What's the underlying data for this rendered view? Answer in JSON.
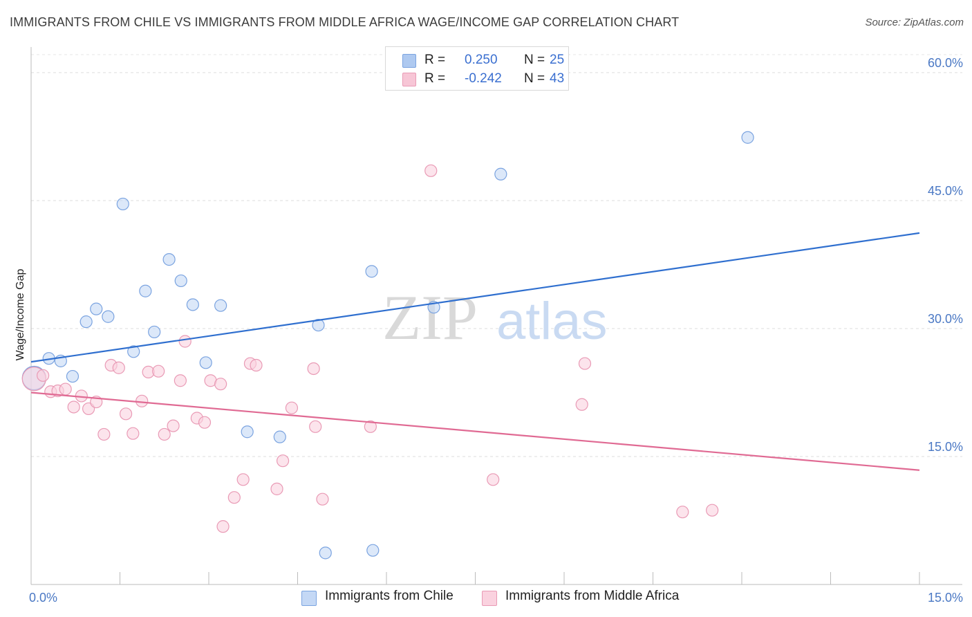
{
  "title": "IMMIGRANTS FROM CHILE VS IMMIGRANTS FROM MIDDLE AFRICA WAGE/INCOME GAP CORRELATION CHART",
  "source": "Source: ZipAtlas.com",
  "watermark": {
    "zip": "ZIP",
    "atlas": "atlas"
  },
  "legend_top": {
    "rows": [
      {
        "r_label": "R =",
        "r_value": "0.250",
        "n_label": "N =",
        "n_value": "25",
        "color": "#aec9f0",
        "border": "#7aa3e0"
      },
      {
        "r_label": "R =",
        "r_value": "-0.242",
        "n_label": "N =",
        "n_value": "43",
        "color": "#f7c6d6",
        "border": "#e99ab5"
      }
    ]
  },
  "legend_bottom": [
    {
      "label": "Immigrants from Chile",
      "color": "#c4d8f5",
      "border": "#7aa3e0"
    },
    {
      "label": "Immigrants from Middle Africa",
      "color": "#fad2df",
      "border": "#e99ab5"
    }
  ],
  "chart_data": {
    "type": "scatter",
    "title": "IMMIGRANTS FROM CHILE VS IMMIGRANTS FROM MIDDLE AFRICA WAGE/INCOME GAP CORRELATION CHART",
    "xlabel": "",
    "ylabel": "Wage/Income Gap",
    "xlim": [
      0,
      15
    ],
    "ylim": [
      0,
      63
    ],
    "x_tick_labels": [
      {
        "value": 0,
        "label": "0.0%"
      },
      {
        "value": 15,
        "label": "15.0%"
      }
    ],
    "y_tick_labels": [
      {
        "value": 15,
        "label": "15.0%"
      },
      {
        "value": 30,
        "label": "30.0%"
      },
      {
        "value": 45,
        "label": "45.0%"
      },
      {
        "value": 60,
        "label": "60.0%"
      }
    ],
    "grid": true,
    "series": [
      {
        "name": "Immigrants from Chile",
        "color": "#7aa3e0",
        "fill": "#c4d8f5",
        "line_color": "#2f6fcf",
        "trend": {
          "x": [
            0,
            15
          ],
          "y": [
            26.1,
            41.2
          ]
        },
        "points": [
          {
            "x": 0.05,
            "y": 24.2,
            "big": true
          },
          {
            "x": 0.3,
            "y": 26.5
          },
          {
            "x": 0.5,
            "y": 26.2
          },
          {
            "x": 0.7,
            "y": 24.4
          },
          {
            "x": 0.93,
            "y": 30.8
          },
          {
            "x": 1.1,
            "y": 32.3
          },
          {
            "x": 1.3,
            "y": 31.4
          },
          {
            "x": 1.55,
            "y": 44.6
          },
          {
            "x": 1.73,
            "y": 27.3
          },
          {
            "x": 1.93,
            "y": 34.4
          },
          {
            "x": 2.08,
            "y": 29.6
          },
          {
            "x": 2.33,
            "y": 38.1
          },
          {
            "x": 2.53,
            "y": 35.6
          },
          {
            "x": 2.73,
            "y": 32.8
          },
          {
            "x": 2.95,
            "y": 26.0
          },
          {
            "x": 3.2,
            "y": 32.7
          },
          {
            "x": 3.65,
            "y": 17.9
          },
          {
            "x": 4.2,
            "y": 17.3
          },
          {
            "x": 4.85,
            "y": 30.4
          },
          {
            "x": 4.97,
            "y": 3.7
          },
          {
            "x": 5.75,
            "y": 36.7
          },
          {
            "x": 5.77,
            "y": 4.0
          },
          {
            "x": 6.8,
            "y": 32.5
          },
          {
            "x": 7.93,
            "y": 48.1
          },
          {
            "x": 12.1,
            "y": 52.4
          }
        ]
      },
      {
        "name": "Immigrants from Middle Africa",
        "color": "#e99ab5",
        "fill": "#fad2df",
        "line_color": "#e06a93",
        "trend": {
          "x": [
            0,
            15
          ],
          "y": [
            22.5,
            13.4
          ]
        },
        "points": [
          {
            "x": 0.05,
            "y": 24.1,
            "big": true
          },
          {
            "x": 0.2,
            "y": 24.5
          },
          {
            "x": 0.33,
            "y": 22.6
          },
          {
            "x": 0.45,
            "y": 22.7
          },
          {
            "x": 0.58,
            "y": 22.9
          },
          {
            "x": 0.72,
            "y": 20.8
          },
          {
            "x": 0.85,
            "y": 22.1
          },
          {
            "x": 0.97,
            "y": 20.6
          },
          {
            "x": 1.1,
            "y": 21.4
          },
          {
            "x": 1.23,
            "y": 17.6
          },
          {
            "x": 1.35,
            "y": 25.7
          },
          {
            "x": 1.48,
            "y": 25.4
          },
          {
            "x": 1.6,
            "y": 20.0
          },
          {
            "x": 1.72,
            "y": 17.7
          },
          {
            "x": 1.87,
            "y": 21.5
          },
          {
            "x": 1.98,
            "y": 24.9
          },
          {
            "x": 2.15,
            "y": 25.0
          },
          {
            "x": 2.25,
            "y": 17.6
          },
          {
            "x": 2.4,
            "y": 18.6
          },
          {
            "x": 2.52,
            "y": 23.9
          },
          {
            "x": 2.6,
            "y": 28.5
          },
          {
            "x": 2.8,
            "y": 19.5
          },
          {
            "x": 2.93,
            "y": 19.0
          },
          {
            "x": 3.03,
            "y": 23.9
          },
          {
            "x": 3.2,
            "y": 23.5
          },
          {
            "x": 3.24,
            "y": 6.8
          },
          {
            "x": 3.43,
            "y": 10.2
          },
          {
            "x": 3.58,
            "y": 12.3
          },
          {
            "x": 3.7,
            "y": 25.9
          },
          {
            "x": 3.8,
            "y": 25.7
          },
          {
            "x": 4.15,
            "y": 11.2
          },
          {
            "x": 4.25,
            "y": 14.5
          },
          {
            "x": 4.4,
            "y": 20.7
          },
          {
            "x": 4.77,
            "y": 25.3
          },
          {
            "x": 4.8,
            "y": 18.5
          },
          {
            "x": 4.92,
            "y": 10.0
          },
          {
            "x": 5.73,
            "y": 18.5
          },
          {
            "x": 6.75,
            "y": 48.5
          },
          {
            "x": 7.8,
            "y": 12.3
          },
          {
            "x": 9.3,
            "y": 21.1
          },
          {
            "x": 9.35,
            "y": 25.9
          },
          {
            "x": 11.0,
            "y": 8.5
          },
          {
            "x": 11.5,
            "y": 8.7
          }
        ]
      }
    ]
  }
}
